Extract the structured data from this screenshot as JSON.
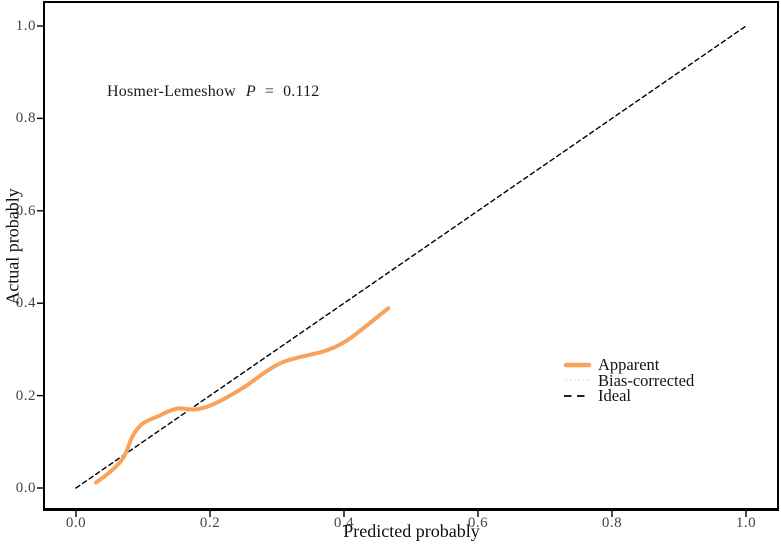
{
  "figure": {
    "background": "#ffffff",
    "axis_color": "#000000",
    "tick_label_color": "#454545"
  },
  "chart_data": {
    "type": "line",
    "title": "",
    "xlabel": "Predicted probably",
    "ylabel": "Actual probably",
    "xlim": [
      0.0,
      1.0
    ],
    "ylim": [
      0.0,
      1.0
    ],
    "grid": false,
    "xticks": [
      0.0,
      0.2,
      0.4,
      0.6,
      0.8,
      1.0
    ],
    "xtick_labels": [
      "0.0",
      "0.2",
      "0.4",
      "0.6",
      "0.8",
      "1.0"
    ],
    "yticks": [
      0.0,
      0.2,
      0.4,
      0.6,
      0.8,
      1.0
    ],
    "ytick_labels": [
      "0.0",
      "0.2",
      "0.4",
      "0.6",
      "0.8",
      "1.0"
    ],
    "annotation": {
      "label": "Hosmer-Lemeshow",
      "p_symbol": "P",
      "equals": "=",
      "value": "0.112"
    },
    "legend": {
      "position": "right-center",
      "entries": [
        {
          "label": "Apparent",
          "color": "#f8a25c",
          "style": "solid",
          "width": 4.5
        },
        {
          "label": "Bias-corrected",
          "color": "#cfe0ef",
          "style": "dotted",
          "width": 1.4
        },
        {
          "label": "Ideal",
          "color": "#000000",
          "style": "dashed",
          "width": 1.7
        }
      ]
    },
    "series": [
      {
        "name": "Ideal",
        "color": "#000000",
        "style": "dashed",
        "width": 1.4,
        "smooth": false,
        "points": [
          [
            0.0,
            0.0
          ],
          [
            1.0,
            1.0
          ]
        ]
      },
      {
        "name": "Bias-corrected",
        "color": "#cfe0ef",
        "style": "dotted",
        "width": 1.4,
        "smooth": true,
        "points": [
          [
            0.03,
            0.012
          ],
          [
            0.045,
            0.028
          ],
          [
            0.06,
            0.047
          ],
          [
            0.07,
            0.064
          ],
          [
            0.077,
            0.085
          ],
          [
            0.083,
            0.108
          ],
          [
            0.091,
            0.127
          ],
          [
            0.1,
            0.14
          ],
          [
            0.112,
            0.149
          ],
          [
            0.125,
            0.157
          ],
          [
            0.138,
            0.166
          ],
          [
            0.152,
            0.172
          ],
          [
            0.165,
            0.171
          ],
          [
            0.178,
            0.17
          ],
          [
            0.192,
            0.174
          ],
          [
            0.206,
            0.182
          ],
          [
            0.22,
            0.192
          ],
          [
            0.237,
            0.206
          ],
          [
            0.255,
            0.222
          ],
          [
            0.272,
            0.24
          ],
          [
            0.29,
            0.258
          ],
          [
            0.308,
            0.272
          ],
          [
            0.328,
            0.281
          ],
          [
            0.348,
            0.288
          ],
          [
            0.368,
            0.295
          ],
          [
            0.388,
            0.306
          ],
          [
            0.408,
            0.323
          ],
          [
            0.428,
            0.345
          ],
          [
            0.448,
            0.368
          ],
          [
            0.466,
            0.389
          ]
        ]
      },
      {
        "name": "Apparent",
        "color": "#f8a25c",
        "style": "solid",
        "width": 4,
        "smooth": true,
        "points": [
          [
            0.03,
            0.012
          ],
          [
            0.045,
            0.028
          ],
          [
            0.06,
            0.047
          ],
          [
            0.07,
            0.064
          ],
          [
            0.077,
            0.085
          ],
          [
            0.083,
            0.108
          ],
          [
            0.091,
            0.127
          ],
          [
            0.1,
            0.14
          ],
          [
            0.112,
            0.149
          ],
          [
            0.125,
            0.157
          ],
          [
            0.138,
            0.166
          ],
          [
            0.152,
            0.172
          ],
          [
            0.165,
            0.171
          ],
          [
            0.178,
            0.17
          ],
          [
            0.192,
            0.174
          ],
          [
            0.206,
            0.182
          ],
          [
            0.22,
            0.192
          ],
          [
            0.237,
            0.206
          ],
          [
            0.255,
            0.222
          ],
          [
            0.272,
            0.24
          ],
          [
            0.29,
            0.258
          ],
          [
            0.308,
            0.272
          ],
          [
            0.328,
            0.281
          ],
          [
            0.348,
            0.288
          ],
          [
            0.368,
            0.295
          ],
          [
            0.388,
            0.306
          ],
          [
            0.408,
            0.323
          ],
          [
            0.428,
            0.345
          ],
          [
            0.448,
            0.368
          ],
          [
            0.466,
            0.389
          ]
        ]
      }
    ]
  }
}
